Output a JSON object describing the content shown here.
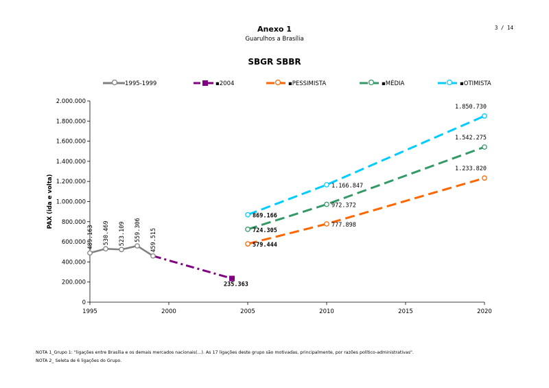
{
  "header": {
    "title": "Anexo 1",
    "subtitle": "Guarulhos a Brasília",
    "page": "3 / 14"
  },
  "notes": [
    "NOTA 1_Grupo 1: \"ligações entre Brasília e os demais mercados nacionais(...). As 17 ligações deste grupo são motivadas, principalmente, por razões político-administrativas\".",
    "NOTA 2_ Seleta de 6 ligações do Grupo."
  ],
  "chart_data": {
    "type": "line",
    "title": "SBGR SBBR",
    "xlabel": "",
    "ylabel": "PAX (ida e volta)",
    "xlim": [
      1995,
      2020
    ],
    "ylim": [
      0,
      2000000
    ],
    "x_ticks": [
      1995,
      2000,
      2005,
      2010,
      2015,
      2020
    ],
    "y_ticks": [
      0,
      200000,
      400000,
      600000,
      800000,
      1000000,
      1200000,
      1400000,
      1600000,
      1800000,
      2000000
    ],
    "x_tick_labels": [
      "1995",
      "2000",
      "2005",
      "2010",
      "2015",
      "2020"
    ],
    "y_tick_labels": [
      "0",
      "200.000",
      "400.000",
      "600.000",
      "800.000",
      "1.000.000",
      "1.200.000",
      "1.400.000",
      "1.600.000",
      "1.800.000",
      "2.000.000"
    ],
    "legend_position": "top",
    "grid": false,
    "series": [
      {
        "name": "1995-1999",
        "color": "#808080",
        "style": "solid",
        "marker": "circle",
        "points": [
          {
            "x": 1995,
            "y": 489163,
            "label": "489.163"
          },
          {
            "x": 1996,
            "y": 530469,
            "label": "530.469"
          },
          {
            "x": 1997,
            "y": 523109,
            "label": "523.109"
          },
          {
            "x": 1998,
            "y": 559306,
            "label": "559.306"
          },
          {
            "x": 1999,
            "y": 459515,
            "label": "459.515"
          }
        ]
      },
      {
        "name": "2004",
        "color": "#800080",
        "style": "dashdot",
        "marker": "square",
        "points": [
          {
            "x": 1999,
            "y": 459515,
            "label": ""
          },
          {
            "x": 2004,
            "y": 235363,
            "label": "235.363"
          }
        ]
      },
      {
        "name": "PESSIMISTA",
        "color": "#ff6600",
        "style": "dash",
        "marker": "circle",
        "points": [
          {
            "x": 2005,
            "y": 579444,
            "label": "579.444"
          },
          {
            "x": 2010,
            "y": 777898,
            "label": "777.898"
          },
          {
            "x": 2020,
            "y": 1233820,
            "label": "1.233.820"
          }
        ]
      },
      {
        "name": "MÉDIA",
        "color": "#339966",
        "style": "dash",
        "marker": "circle",
        "points": [
          {
            "x": 2005,
            "y": 724305,
            "label": "724.305"
          },
          {
            "x": 2010,
            "y": 972372,
            "label": "972.372"
          },
          {
            "x": 2020,
            "y": 1542275,
            "label": "1.542.275"
          }
        ]
      },
      {
        "name": "OTIMISTA",
        "color": "#00ccff",
        "style": "dash",
        "marker": "circle",
        "points": [
          {
            "x": 2005,
            "y": 869166,
            "label": "869.166"
          },
          {
            "x": 2010,
            "y": 1166847,
            "label": "1.166.847"
          },
          {
            "x": 2020,
            "y": 1850730,
            "label": "1.850.730"
          }
        ]
      }
    ]
  }
}
